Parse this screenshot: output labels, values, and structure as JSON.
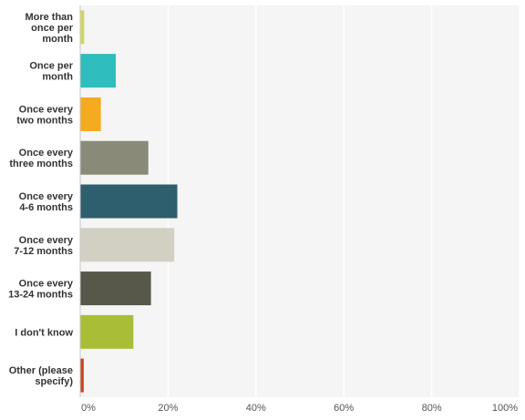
{
  "chart_data": {
    "type": "bar",
    "orientation": "horizontal",
    "categories": [
      "More than once per month",
      "Once per month",
      "Once every two months",
      "Once every three months",
      "Once every 4-6 months",
      "Once every 7-12 months",
      "Once every 13-24 months",
      "I don't know",
      "Other (please specify)"
    ],
    "category_lines": [
      [
        "More than",
        "once per",
        "month"
      ],
      [
        "Once per",
        "month"
      ],
      [
        "Once every",
        "two months"
      ],
      [
        "Once every",
        "three months"
      ],
      [
        "Once every",
        "4-6 months"
      ],
      [
        "Once every",
        "7-12 months"
      ],
      [
        "Once every",
        "13-24 months"
      ],
      [
        "I don't know"
      ],
      [
        "Other (please",
        "specify)"
      ]
    ],
    "values": [
      0.8,
      8.0,
      4.6,
      15.4,
      22.0,
      21.3,
      16.0,
      12.0,
      0.7
    ],
    "colors": [
      "#d2d65a",
      "#2fbdbd",
      "#f5ab1f",
      "#8a8a78",
      "#2d5f6e",
      "#d1d0c2",
      "#57574a",
      "#a9be36",
      "#c9471e"
    ],
    "xlim": [
      0,
      100
    ],
    "xticks": [
      "0%",
      "20%",
      "40%",
      "60%",
      "80%",
      "100%"
    ],
    "grid": true,
    "title": "",
    "xlabel": "",
    "ylabel": ""
  }
}
